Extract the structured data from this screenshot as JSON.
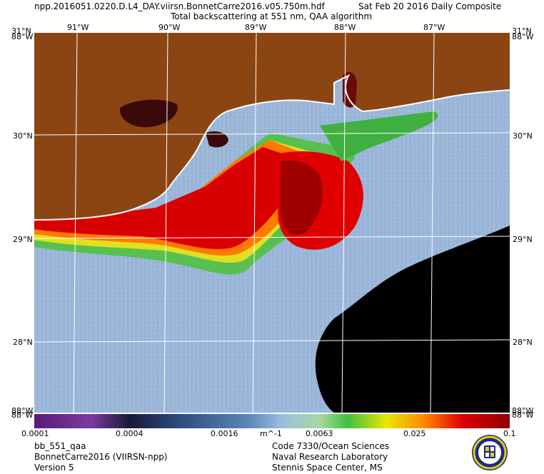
{
  "header": {
    "filename": "npp.2016051.0220.D.L4_DAY.viirsn.BonnetCarre2016.v05.750m.hdf",
    "date": "Sat Feb 20 2016 Daily Composite",
    "product": "Total backscattering at 551 nm, QAA algorithm"
  },
  "map": {
    "lat_labels_left": [
      "31°N",
      "30°N",
      "29°N",
      "28°N"
    ],
    "lat_labels_right": [
      "31°N",
      "30°N",
      "29°N",
      "28°N"
    ],
    "lon_labels": [
      "91°W",
      "90°W",
      "89°W",
      "88°W",
      "87°W"
    ],
    "corner_labels": {
      "top_left": "31°N",
      "top_right": "31°N",
      "bottom_left": "88°W",
      "bottom_right": "88°W"
    },
    "land_color": "#8b4513",
    "water_color": "#9bb6d8",
    "cloud_color": "#000000",
    "grid_color": "#ffffff"
  },
  "colorbar": {
    "tick_labels": [
      "0.0001",
      "0.0004",
      "0.0016",
      "0.0063",
      "0.025",
      "0.1"
    ],
    "units": "m^-1",
    "scale": "log",
    "range": [
      0.0001,
      0.1
    ],
    "colors": [
      "#5a1a7a",
      "#7a3aa0",
      "#1a1a3a",
      "#2a4a7a",
      "#5a86b6",
      "#9bbde0",
      "#a8d8a0",
      "#40c040",
      "#e8e800",
      "#ff8800",
      "#e00000",
      "#8b0000"
    ]
  },
  "footer": {
    "left_line1": "bb_551_qaa",
    "left_line2": "BonnetCarre2016 (VIIRSN-npp)",
    "left_line3": "Version 5",
    "right_line1": "Code 7330/Ocean Sciences",
    "right_line2": "Naval Research Laboratory",
    "right_line3": "Stennis Space Center, MS"
  }
}
